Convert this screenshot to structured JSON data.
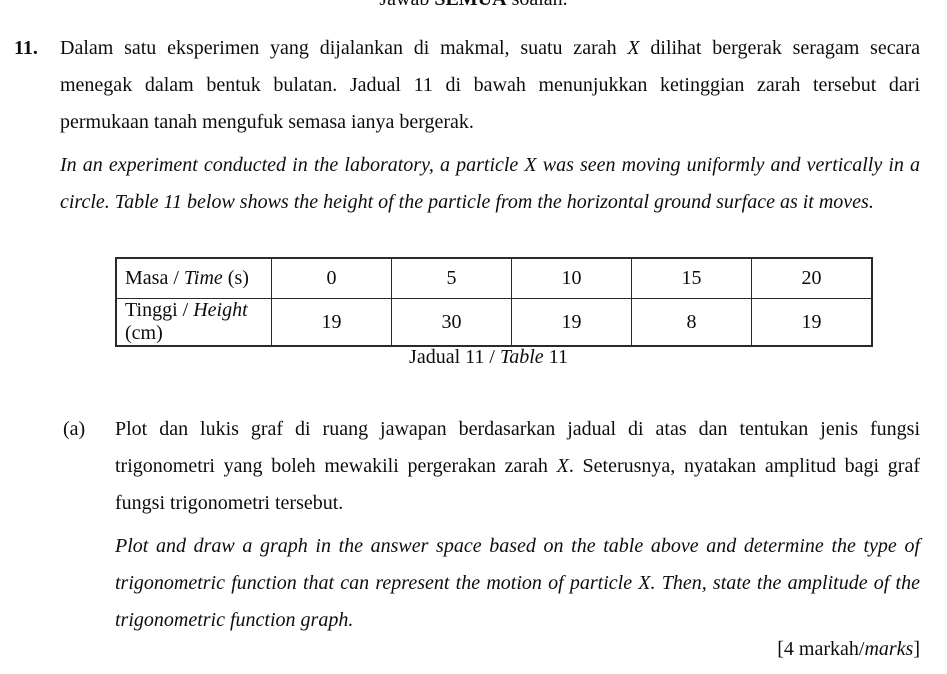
{
  "page": {
    "header_instruction": {
      "pre": "Jawab ",
      "bold": "SEMUA",
      "post": " soalan."
    },
    "question": {
      "number": "11.",
      "malay": {
        "seg1": "Dalam satu eksperimen yang dijalankan di makmal, suatu zarah ",
        "var1": "X",
        "seg2": " dilihat bergerak seragam secara menegak dalam bentuk bulatan. Jadual 11 di bawah menunjukkan ketinggian zarah tersebut dari permukaan tanah mengufuk semasa ianya bergerak."
      },
      "english": "In an experiment conducted in the laboratory, a particle X was seen moving uniformly and vertically in a circle. Table 11 below shows the height of the particle from the horizontal ground surface as it moves."
    },
    "table": {
      "rows": [
        {
          "label_pre": "Masa / ",
          "label_italic": "Time",
          "label_post": " (s)",
          "values": [
            "0",
            "5",
            "10",
            "15",
            "20"
          ]
        },
        {
          "label_pre": "Tinggi / ",
          "label_italic": "Height",
          "label_post": " (cm)",
          "values": [
            "19",
            "30",
            "19",
            "8",
            "19"
          ]
        }
      ],
      "caption": {
        "pre": "Jadual 11 / ",
        "italic": "Table",
        "post": " 11"
      }
    },
    "part_a": {
      "marker": "(a)",
      "malay": {
        "seg1": "Plot dan lukis graf di ruang jawapan berdasarkan jadual di atas dan tentukan jenis fungsi trigonometri yang boleh mewakili pergerakan zarah ",
        "var1": "X",
        "seg2": ". Seterusnya, nyatakan amplitud bagi graf fungsi trigonometri tersebut."
      },
      "english": "Plot and draw a graph in the answer space based on the table above and determine the type of trigonometric function that can represent the motion of particle X. Then, state the amplitude of the trigonometric function graph."
    },
    "marks": {
      "pre": "[4 markah/",
      "italic": "marks",
      "post": "]"
    }
  }
}
